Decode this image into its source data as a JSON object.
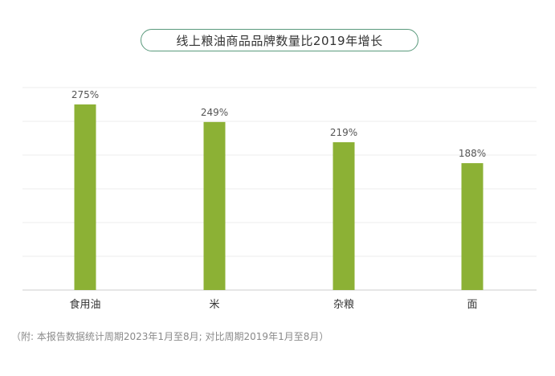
{
  "chart_data": {
    "type": "bar",
    "title": "线上粮油商品品牌数量比2019年增长",
    "categories": [
      "食用油",
      "米",
      "杂粮",
      "面"
    ],
    "values": [
      275,
      249,
      219,
      188
    ],
    "data_labels": [
      "275%",
      "249%",
      "219%",
      "188%"
    ],
    "ylim": [
      0,
      300
    ],
    "grid": true,
    "bar_color": "#8cb135",
    "gridline_color": "#ececec",
    "axis_color": "#cccccc",
    "label_color": "#555555"
  },
  "footnote": "（附: 本报告数据统计周期2023年1月至8月; 对比周期2019年1月至8月）"
}
